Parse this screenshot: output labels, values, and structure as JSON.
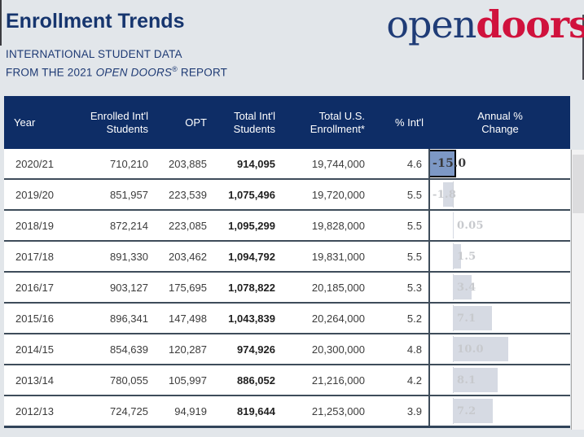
{
  "header": {
    "title": "Enrollment Trends",
    "subtitle_line1": "INTERNATIONAL STUDENT DATA",
    "subtitle_line2_prefix": "FROM THE 2021 ",
    "subtitle_line2_italic": "OPEN DOORS",
    "subtitle_line2_regmark": "®",
    "subtitle_line2_suffix": " REPORT",
    "logo_part1": "open",
    "logo_part2": "doors"
  },
  "colors": {
    "header_navy": "#0e2d66",
    "logo_blue": "#1f3c77",
    "logo_red": "#d0123d",
    "selected_cell_fill": "#7d98c5",
    "selected_cell_border": "#000000",
    "data_bar_fill": "#d6dae3",
    "row_border": "#3e4c5a"
  },
  "table": {
    "columns": [
      {
        "key": "year",
        "label": "Year"
      },
      {
        "key": "enrolled",
        "label": "Enrolled Int'l Students"
      },
      {
        "key": "opt",
        "label": "OPT"
      },
      {
        "key": "total_intl",
        "label": "Total Int'l Students"
      },
      {
        "key": "total_us",
        "label": "Total U.S. Enrollment*"
      },
      {
        "key": "pct_intl",
        "label": "% Int'l"
      },
      {
        "key": "annual",
        "label": "Annual % Change"
      }
    ],
    "rows": [
      {
        "year": "2020/21",
        "enrolled": "710,210",
        "opt": "203,885",
        "total_intl": "914,095",
        "total_us": "19,744,000",
        "pct_intl": "4.6",
        "annual_value": -15.0,
        "annual_label": "-15.0",
        "selected": true
      },
      {
        "year": "2019/20",
        "enrolled": "851,957",
        "opt": "223,539",
        "total_intl": "1,075,496",
        "total_us": "19,720,000",
        "pct_intl": "5.5",
        "annual_value": -1.8,
        "annual_label": "-1.8",
        "selected": false
      },
      {
        "year": "2018/19",
        "enrolled": "872,214",
        "opt": "223,085",
        "total_intl": "1,095,299",
        "total_us": "19,828,000",
        "pct_intl": "5.5",
        "annual_value": 0.05,
        "annual_label": "0.05",
        "selected": false
      },
      {
        "year": "2017/18",
        "enrolled": "891,330",
        "opt": "203,462",
        "total_intl": "1,094,792",
        "total_us": "19,831,000",
        "pct_intl": "5.5",
        "annual_value": 1.5,
        "annual_label": "1.5",
        "selected": false
      },
      {
        "year": "2016/17",
        "enrolled": "903,127",
        "opt": "175,695",
        "total_intl": "1,078,822",
        "total_us": "20,185,000",
        "pct_intl": "5.3",
        "annual_value": 3.4,
        "annual_label": "3.4",
        "selected": false
      },
      {
        "year": "2015/16",
        "enrolled": "896,341",
        "opt": "147,498",
        "total_intl": "1,043,839",
        "total_us": "20,264,000",
        "pct_intl": "5.2",
        "annual_value": 7.1,
        "annual_label": "7.1",
        "selected": false
      },
      {
        "year": "2014/15",
        "enrolled": "854,639",
        "opt": "120,287",
        "total_intl": "974,926",
        "total_us": "20,300,000",
        "pct_intl": "4.8",
        "annual_value": 10.0,
        "annual_label": "10.0",
        "selected": false
      },
      {
        "year": "2013/14",
        "enrolled": "780,055",
        "opt": "105,997",
        "total_intl": "886,052",
        "total_us": "21,216,000",
        "pct_intl": "4.2",
        "annual_value": 8.1,
        "annual_label": "8.1",
        "selected": false
      },
      {
        "year": "2012/13",
        "enrolled": "724,725",
        "opt": "94,919",
        "total_intl": "819,644",
        "total_us": "21,253,000",
        "pct_intl": "3.9",
        "annual_value": 7.2,
        "annual_label": "7.2",
        "selected": false
      }
    ]
  }
}
